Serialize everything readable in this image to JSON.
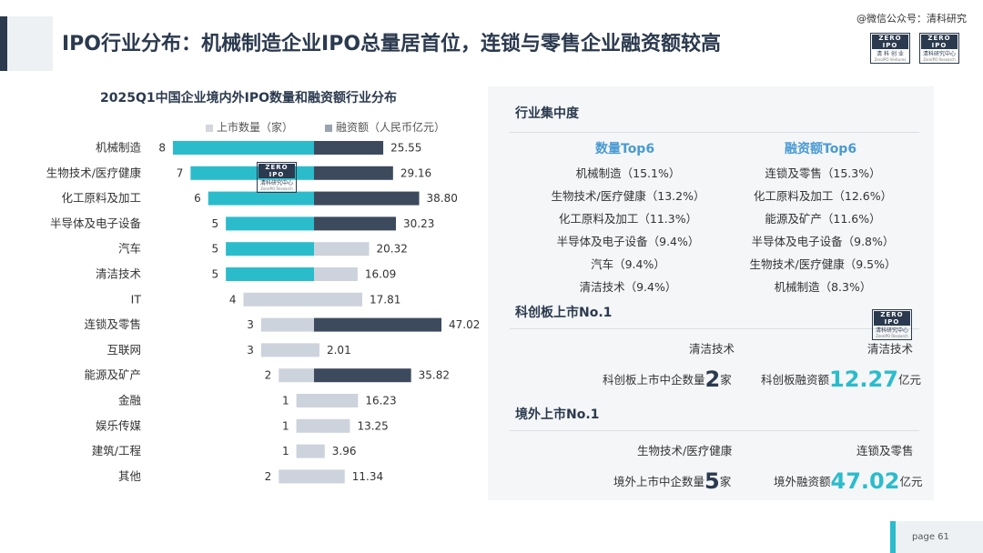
{
  "page": {
    "title": "IPO行业分布：机械制造企业IPO总量居首位，连锁与零售企业融资额较高",
    "watermark": "@微信公众号：清科研究",
    "page_label": "page 61",
    "accent_color": "#2bbccc",
    "dark_color": "#3d4a5e",
    "light_color": "#cdd3dc"
  },
  "logos": {
    "logo1": {
      "top": "ZERO IPO",
      "bottom": "清 科 创 业",
      "small": "ZeroIPO Ventures"
    },
    "logo2": {
      "top": "ZERO IPO",
      "bottom": "清科研究中心",
      "small": "ZeroIPO Research"
    }
  },
  "chart_data": {
    "type": "bar",
    "title": "2025Q1中国企业境内外IPO数量和融资额行业分布",
    "categories": [
      "机械制造",
      "生物技术/医疗健康",
      "化工原料及加工",
      "半导体及电子设备",
      "汽车",
      "清洁技术",
      "IT",
      "连锁及零售",
      "互联网",
      "能源及矿产",
      "金融",
      "娱乐传媒",
      "建筑/工程",
      "其他"
    ],
    "series": [
      {
        "name": "上市数量（家）",
        "values": [
          8,
          7,
          6,
          5,
          5,
          5,
          4,
          3,
          3,
          2,
          1,
          1,
          1,
          2
        ],
        "highlight": [
          true,
          true,
          true,
          true,
          true,
          true,
          false,
          false,
          false,
          false,
          false,
          false,
          false,
          false
        ]
      },
      {
        "name": "融资额（人民币亿元）",
        "values": [
          25.55,
          29.16,
          38.8,
          30.23,
          20.32,
          16.09,
          17.81,
          47.02,
          2.01,
          35.82,
          16.23,
          13.25,
          3.96,
          11.34
        ],
        "labels": [
          "25.55",
          "29.16",
          "38.80",
          "30.23",
          "20.32",
          "16.09",
          "17.81",
          "47.02",
          "2.01",
          "35.82",
          "16.23",
          "13.25",
          "3.96",
          "11.34"
        ],
        "highlight": [
          true,
          true,
          true,
          true,
          false,
          false,
          false,
          true,
          false,
          true,
          false,
          false,
          false,
          false
        ]
      }
    ],
    "legend_position": "top"
  },
  "panel": {
    "concentration": {
      "heading": "行业集中度",
      "col1_title": "数量Top6",
      "col2_title": "融资额Top6",
      "col1": [
        "机械制造（15.1%）",
        "生物技术/医疗健康（13.2%）",
        "化工原料及加工（11.3%）",
        "半导体及电子设备（9.4%）",
        "汽车（9.4%）",
        "清洁技术（9.4%）"
      ],
      "col2": [
        "连锁及零售（15.3%）",
        "化工原料及加工（12.6%）",
        "能源及矿产（11.6%）",
        "半导体及电子设备（9.8%）",
        "生物技术/医疗健康（9.5%）",
        "机械制造（8.3%）"
      ]
    },
    "star": {
      "heading": "科创板上市No.1",
      "left_industry": "清洁技术",
      "right_industry": "清洁技术",
      "left_prefix": "科创板上市中企数量",
      "left_value": "2",
      "left_suffix": "家",
      "right_prefix": "科创板融资额",
      "right_value": "12.27",
      "right_suffix": "亿元"
    },
    "overseas": {
      "heading": "境外上市No.1",
      "left_industry": "生物技术/医疗健康",
      "right_industry": "连锁及零售",
      "left_prefix": "境外上市中企数量",
      "left_value": "5",
      "left_suffix": "家",
      "right_prefix": "境外融资额",
      "right_value": "47.02",
      "right_suffix": "亿元"
    }
  }
}
